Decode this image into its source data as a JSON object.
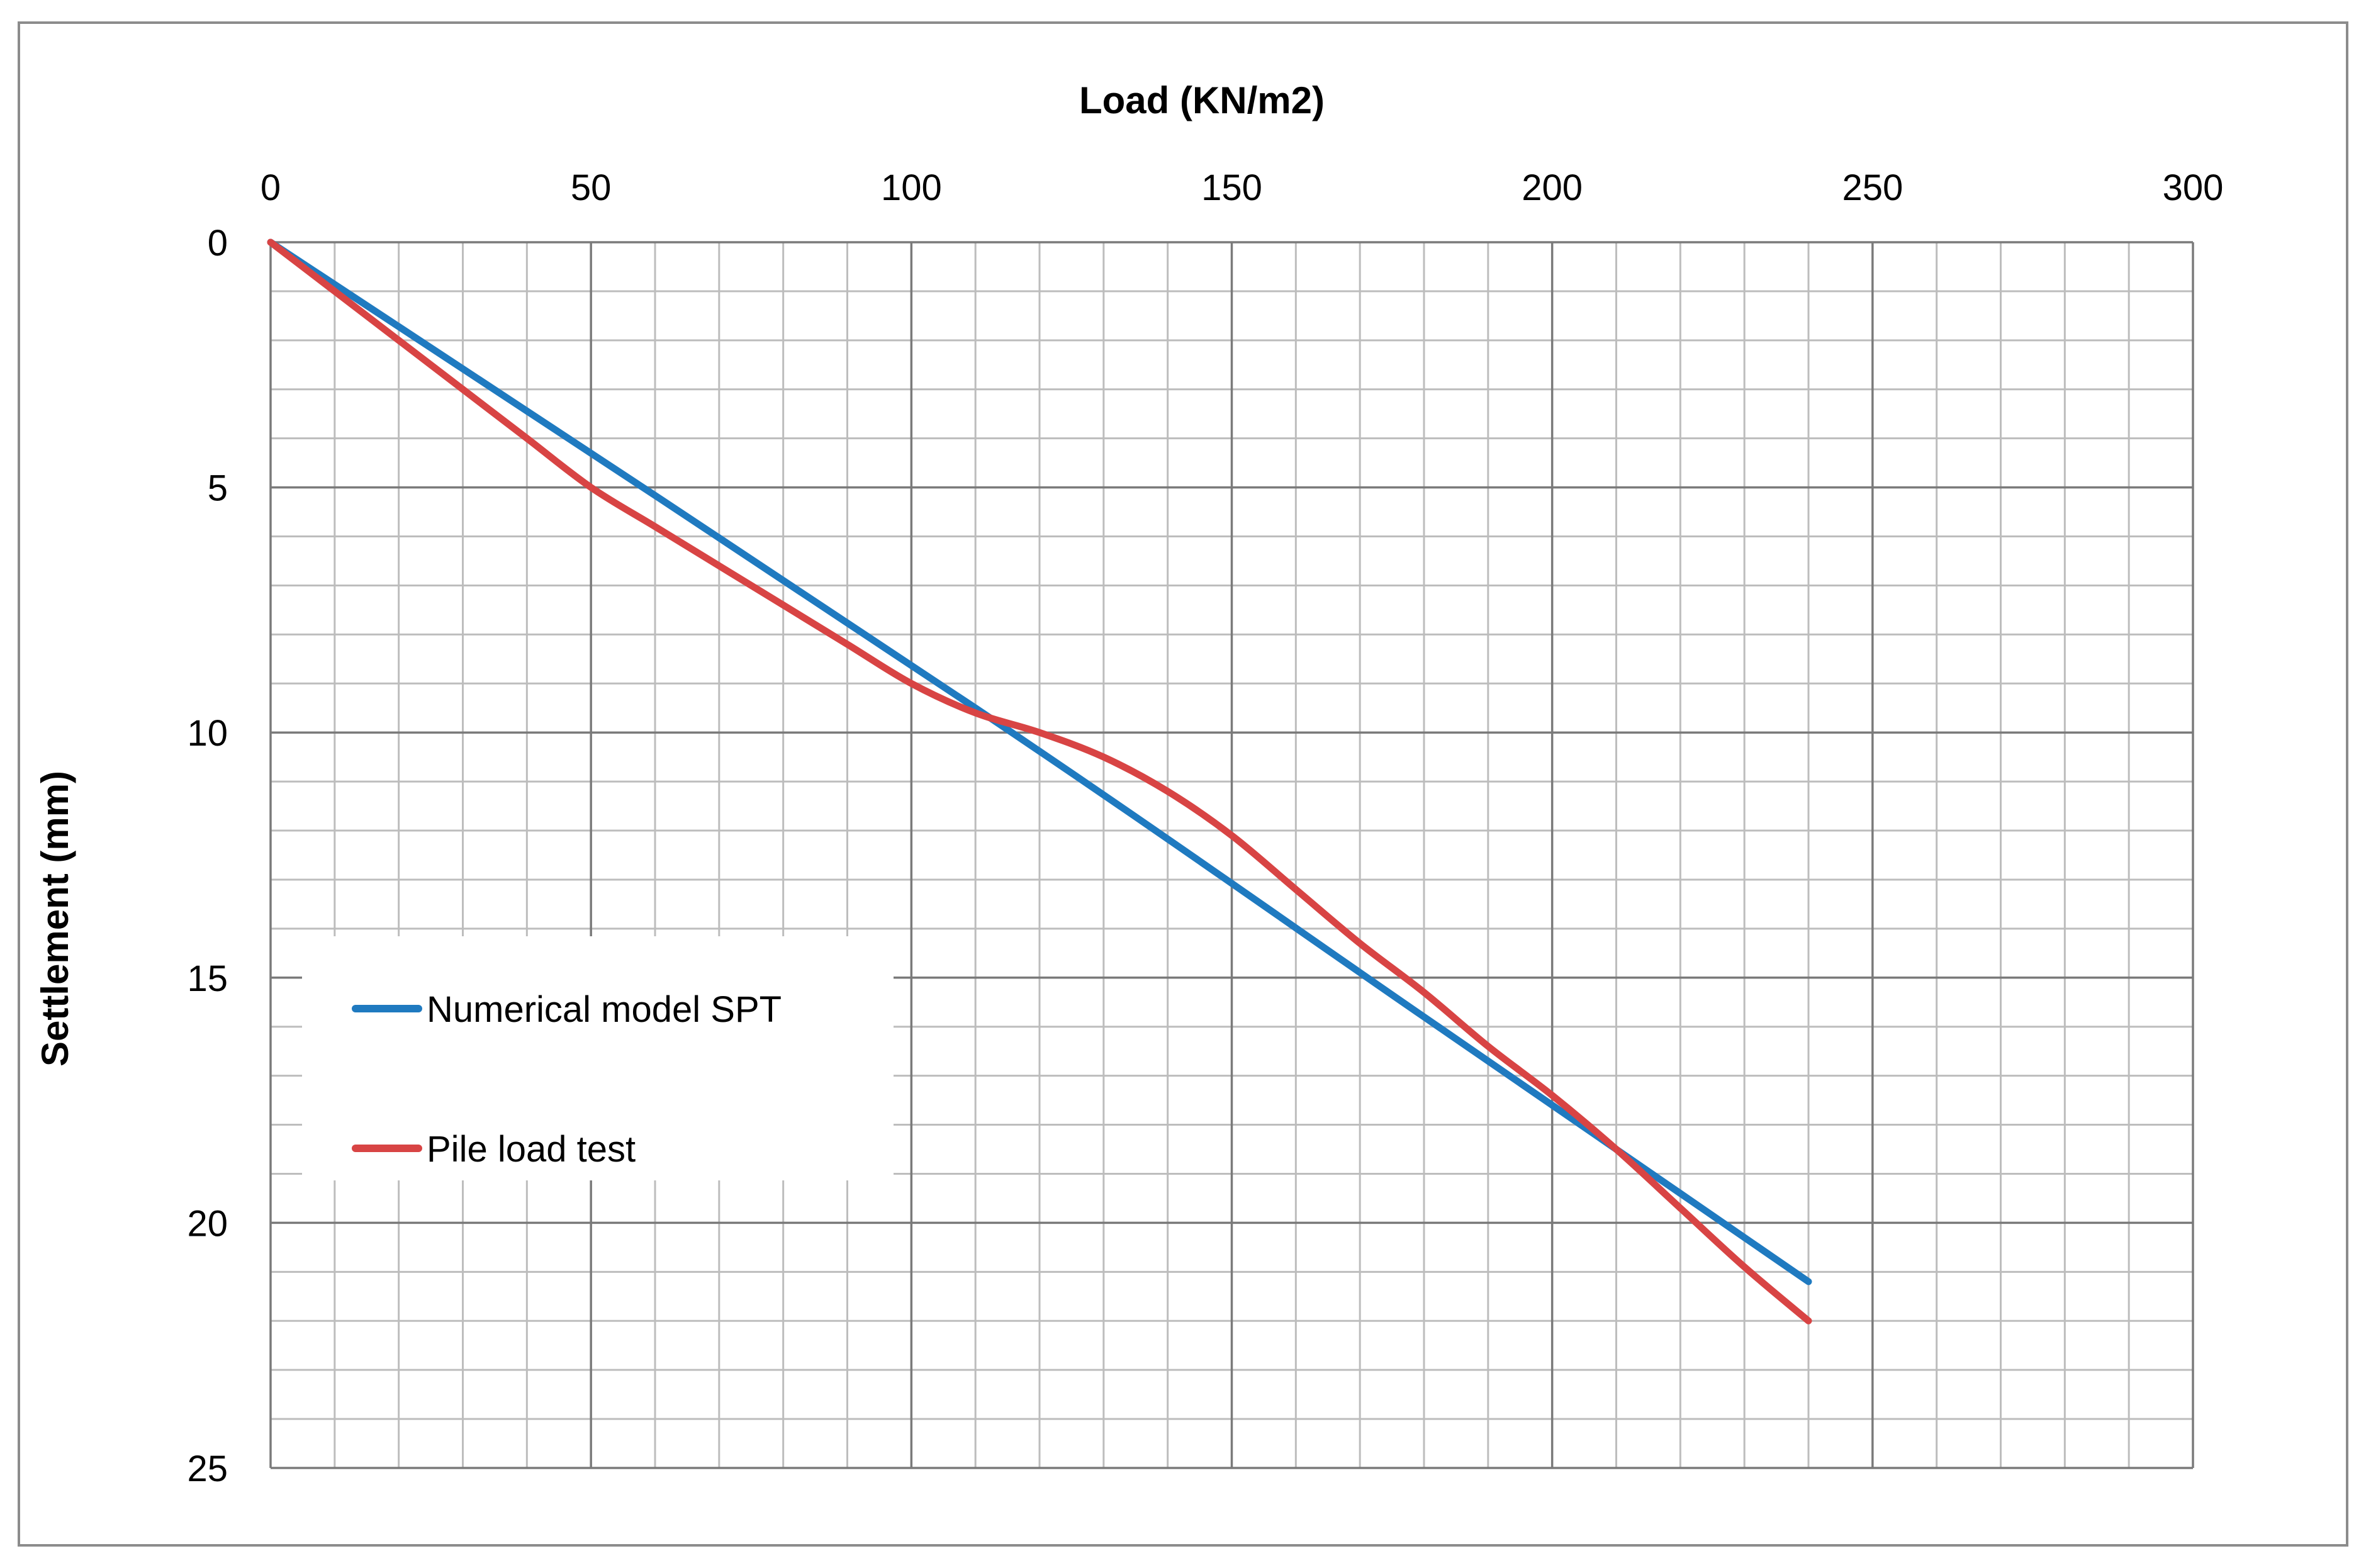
{
  "chart_data": {
    "type": "line",
    "title": "",
    "xlabel": "Load (KN/m2)",
    "ylabel": "Settlement (mm)",
    "x_axis_position": "top",
    "y_axis_inverted": true,
    "xlim": [
      0,
      300
    ],
    "ylim": [
      0,
      25
    ],
    "x_ticks": [
      0,
      50,
      100,
      150,
      200,
      250,
      300
    ],
    "y_ticks": [
      0,
      5,
      10,
      15,
      20,
      25
    ],
    "x_minor_step": 10,
    "y_minor_step": 1,
    "grid": true,
    "legend_position": "bottom-left",
    "series": [
      {
        "name": "Numerical model SPT",
        "color": "#1f7ac0",
        "points": [
          [
            0,
            0
          ],
          [
            110,
            9.5
          ],
          [
            180,
            15.8
          ],
          [
            240,
            21.2
          ]
        ]
      },
      {
        "name": "Pile load test",
        "color": "#d84444",
        "points": [
          [
            0,
            0
          ],
          [
            10,
            1
          ],
          [
            20,
            2
          ],
          [
            30,
            3
          ],
          [
            40,
            4
          ],
          [
            50,
            5
          ],
          [
            60,
            5.8
          ],
          [
            70,
            6.6
          ],
          [
            80,
            7.4
          ],
          [
            90,
            8.2
          ],
          [
            100,
            9
          ],
          [
            110,
            9.6
          ],
          [
            120,
            10
          ],
          [
            130,
            10.5
          ],
          [
            140,
            11.2
          ],
          [
            150,
            12.1
          ],
          [
            160,
            13.2
          ],
          [
            170,
            14.3
          ],
          [
            180,
            15.3
          ],
          [
            190,
            16.4
          ],
          [
            200,
            17.4
          ],
          [
            210,
            18.5
          ],
          [
            220,
            19.7
          ],
          [
            230,
            20.9
          ],
          [
            240,
            22.0
          ]
        ]
      }
    ]
  }
}
